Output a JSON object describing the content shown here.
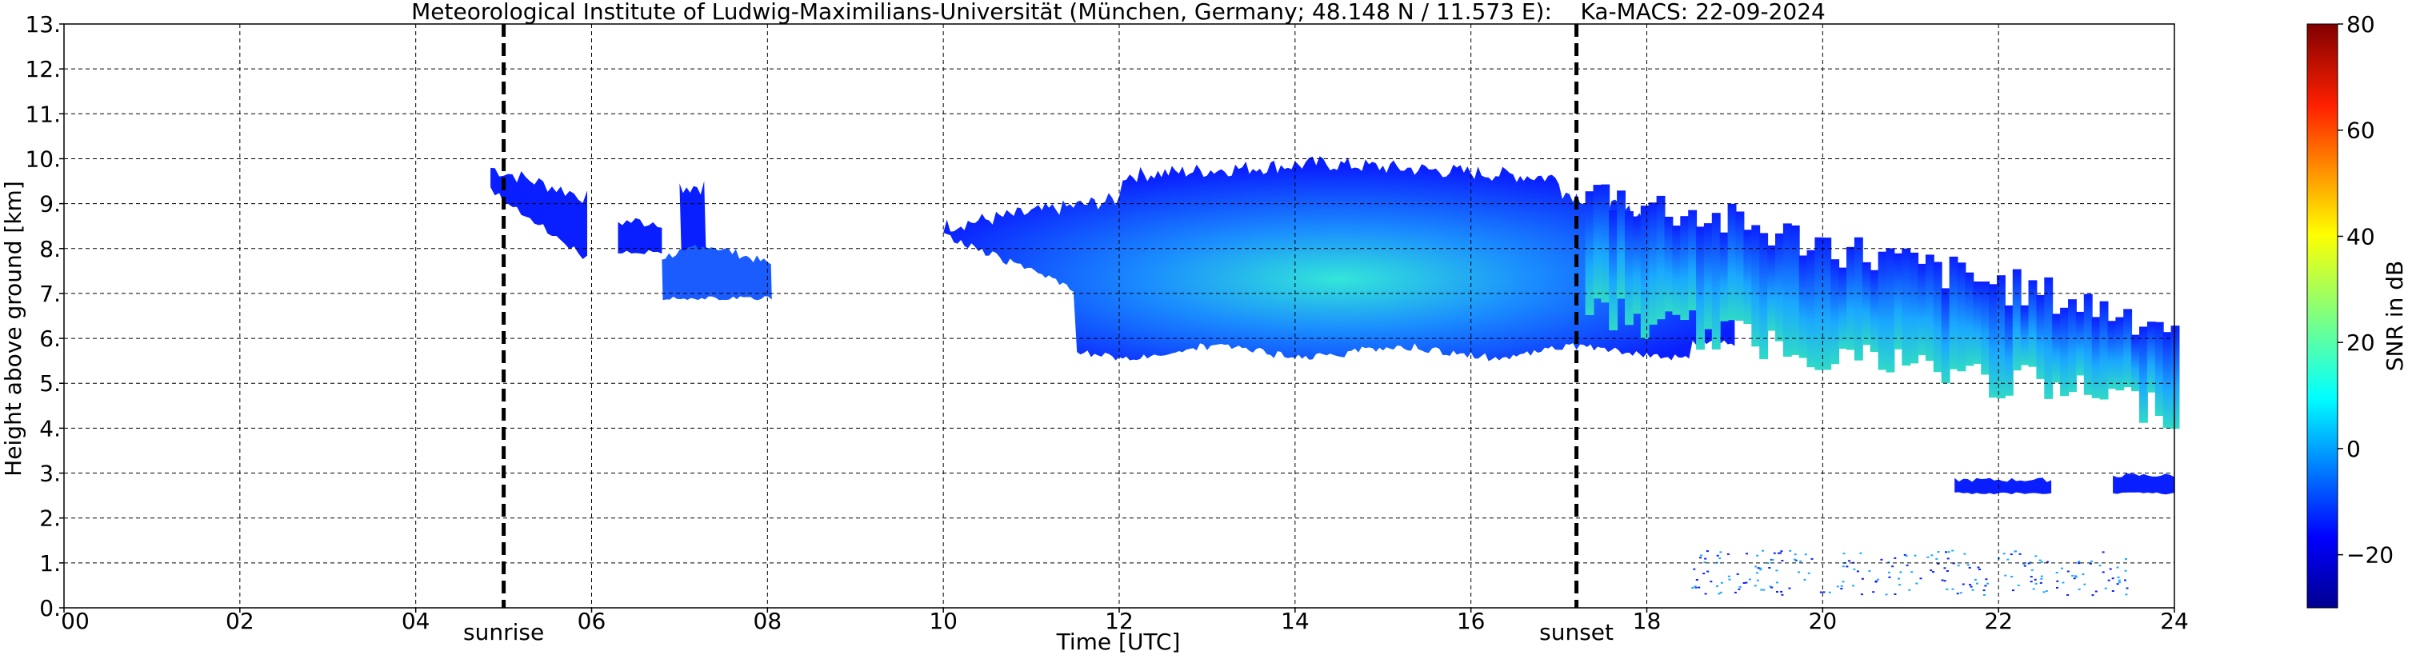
{
  "chart_data": {
    "type": "heatmap",
    "title": "Meteorological Institute of Ludwig-Maximilians-Universität (München, Germany; 48.148 N / 11.573 E):    Ka-MACS: 22-09-2024",
    "xlabel": "Time [UTC]",
    "ylabel": "Height above ground [km]",
    "x_unit": "hours UTC",
    "xlim": [
      0,
      24
    ],
    "ylim": [
      0,
      13
    ],
    "x_ticks": [
      0,
      2,
      4,
      6,
      8,
      10,
      12,
      14,
      16,
      18,
      20,
      22,
      24
    ],
    "x_tick_labels": [
      "00",
      "02",
      "04",
      "06",
      "08",
      "10",
      "12",
      "14",
      "16",
      "18",
      "20",
      "22",
      "24"
    ],
    "y_ticks": [
      0,
      1,
      2,
      3,
      4,
      5,
      6,
      7,
      8,
      9,
      10,
      11,
      12,
      13
    ],
    "y_tick_labels": [
      "0.",
      "1.",
      "2.",
      "3.",
      "4.",
      "5.",
      "6.",
      "7.",
      "8.",
      "9.",
      "10.",
      "11.",
      "12.",
      "13."
    ],
    "grid": true,
    "events": [
      {
        "label": "sunrise",
        "time": 5.0
      },
      {
        "label": "sunset",
        "time": 17.2
      }
    ],
    "colorbar": {
      "label": "SNR in dB",
      "range": [
        -30,
        80
      ],
      "ticks": [
        -20,
        0,
        20,
        40,
        60,
        80
      ],
      "tick_labels": [
        "−20",
        "0",
        "20",
        "40",
        "60",
        "80"
      ],
      "colormap": "jet"
    },
    "echo_regions": [
      {
        "t_start": 4.85,
        "t_end": 6.0,
        "base_km": 7.8,
        "top_km": 10.0,
        "snr_db": -20
      },
      {
        "t_start": 6.3,
        "t_end": 8.05,
        "base_km": 6.9,
        "top_km": 9.5,
        "snr_db": -12
      },
      {
        "t_start": 10.0,
        "t_end": 19.0,
        "base_km": 5.5,
        "top_km": 10.2,
        "snr_db": 5
      },
      {
        "t_start": 17.2,
        "t_end": 24.0,
        "base_km": 4.4,
        "top_km": 9.6,
        "snr_db": 10
      },
      {
        "t_start": 21.5,
        "t_end": 22.6,
        "base_km": 2.55,
        "top_km": 2.8,
        "snr_db": -15
      },
      {
        "t_start": 23.3,
        "t_end": 24.0,
        "base_km": 2.55,
        "top_km": 2.9,
        "snr_db": -15
      },
      {
        "t_start": 18.5,
        "t_end": 23.5,
        "base_km": 0.3,
        "top_km": 1.3,
        "snr_db": -15
      }
    ]
  }
}
